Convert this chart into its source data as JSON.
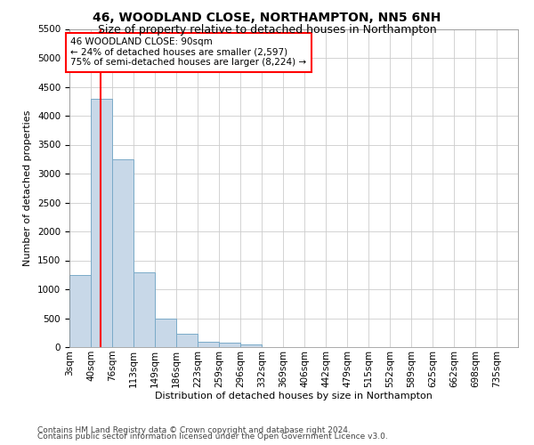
{
  "title": "46, WOODLAND CLOSE, NORTHAMPTON, NN5 6NH",
  "subtitle": "Size of property relative to detached houses in Northampton",
  "xlabel": "Distribution of detached houses by size in Northampton",
  "ylabel": "Number of detached properties",
  "footer_line1": "Contains HM Land Registry data © Crown copyright and database right 2024.",
  "footer_line2": "Contains public sector information licensed under the Open Government Licence v3.0.",
  "annotation_line1": "46 WOODLAND CLOSE: 90sqm",
  "annotation_line2": "← 24% of detached houses are smaller (2,597)",
  "annotation_line3": "75% of semi-detached houses are larger (8,224) →",
  "bar_color": "#c8d8e8",
  "bar_edge_color": "#7aaac8",
  "categories": [
    "3sqm",
    "40sqm",
    "76sqm",
    "113sqm",
    "149sqm",
    "186sqm",
    "223sqm",
    "259sqm",
    "296sqm",
    "332sqm",
    "369sqm",
    "406sqm",
    "442sqm",
    "479sqm",
    "515sqm",
    "552sqm",
    "589sqm",
    "625sqm",
    "662sqm",
    "698sqm",
    "735sqm"
  ],
  "bar_heights": [
    1250,
    4300,
    3250,
    1300,
    500,
    225,
    100,
    75,
    50,
    0,
    0,
    0,
    0,
    0,
    0,
    0,
    0,
    0,
    0,
    0,
    0
  ],
  "red_line_after_bar": 1,
  "ylim": [
    0,
    5500
  ],
  "yticks": [
    0,
    500,
    1000,
    1500,
    2000,
    2500,
    3000,
    3500,
    4000,
    4500,
    5000,
    5500
  ],
  "background_color": "#ffffff",
  "grid_color": "#cccccc",
  "title_fontsize": 10,
  "subtitle_fontsize": 9,
  "axis_label_fontsize": 8,
  "tick_fontsize": 7.5,
  "footer_fontsize": 6.5,
  "annotation_fontsize": 7.5
}
